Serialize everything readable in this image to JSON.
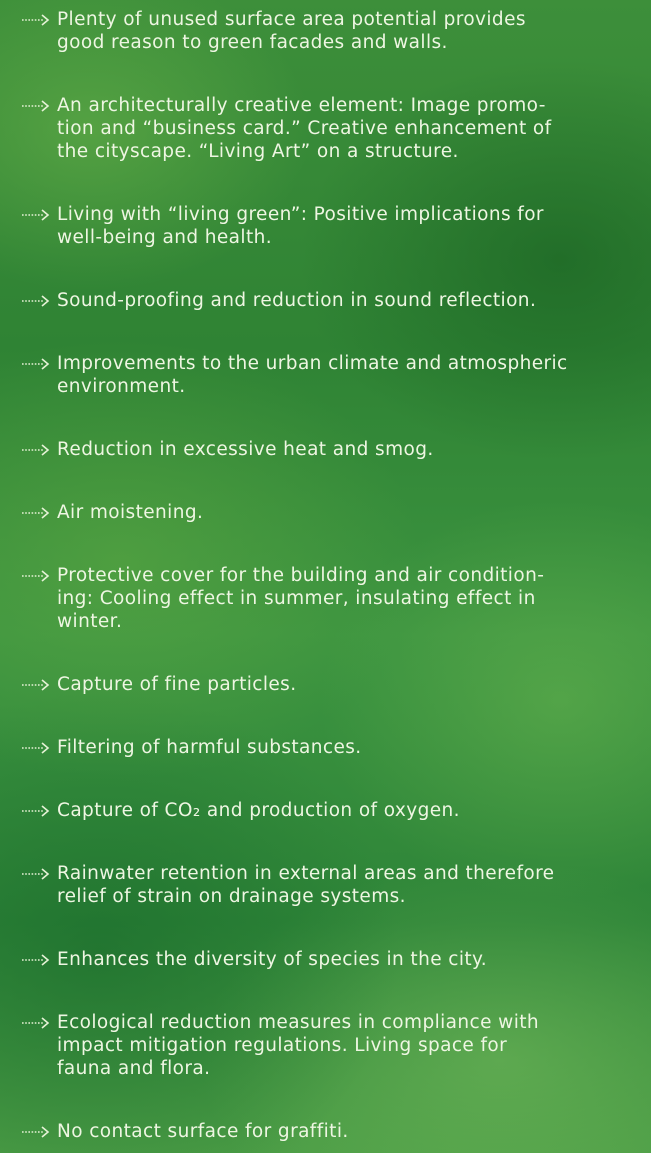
{
  "items": [
    [
      "Plenty of unused surface area potential provides",
      "good reason to green facades and walls."
    ],
    [
      "An architecturally creative element: Image promo-",
      "tion and “business card.” Creative enhancement of",
      "the cityscape. “Living Art” on a structure."
    ],
    [
      "Living with “living green”: Positive implications for",
      "well-being and health."
    ],
    [
      "Sound-proofing and reduction in sound reflection."
    ],
    [
      "Improvements to the urban climate and atmospheric",
      "environment."
    ],
    [
      "Reduction in excessive heat and smog."
    ],
    [
      "Air moistening."
    ],
    [
      "Protective cover for the building and air condition-",
      "ing: Cooling effect in summer, insulating effect in",
      "winter."
    ],
    [
      "Capture of fine particles."
    ],
    [
      "Filtering of harmful substances."
    ],
    [
      "Capture of CO₂ and production of oxygen."
    ],
    [
      "Rainwater retention in external areas and therefore",
      "relief of strain on drainage systems."
    ],
    [
      "Enhances the diversity of species in the city."
    ],
    [
      "Ecological reduction measures in compliance with",
      "impact mitigation regulations. Living space for",
      "fauna and flora."
    ],
    [
      "No contact surface for graffiti."
    ]
  ]
}
